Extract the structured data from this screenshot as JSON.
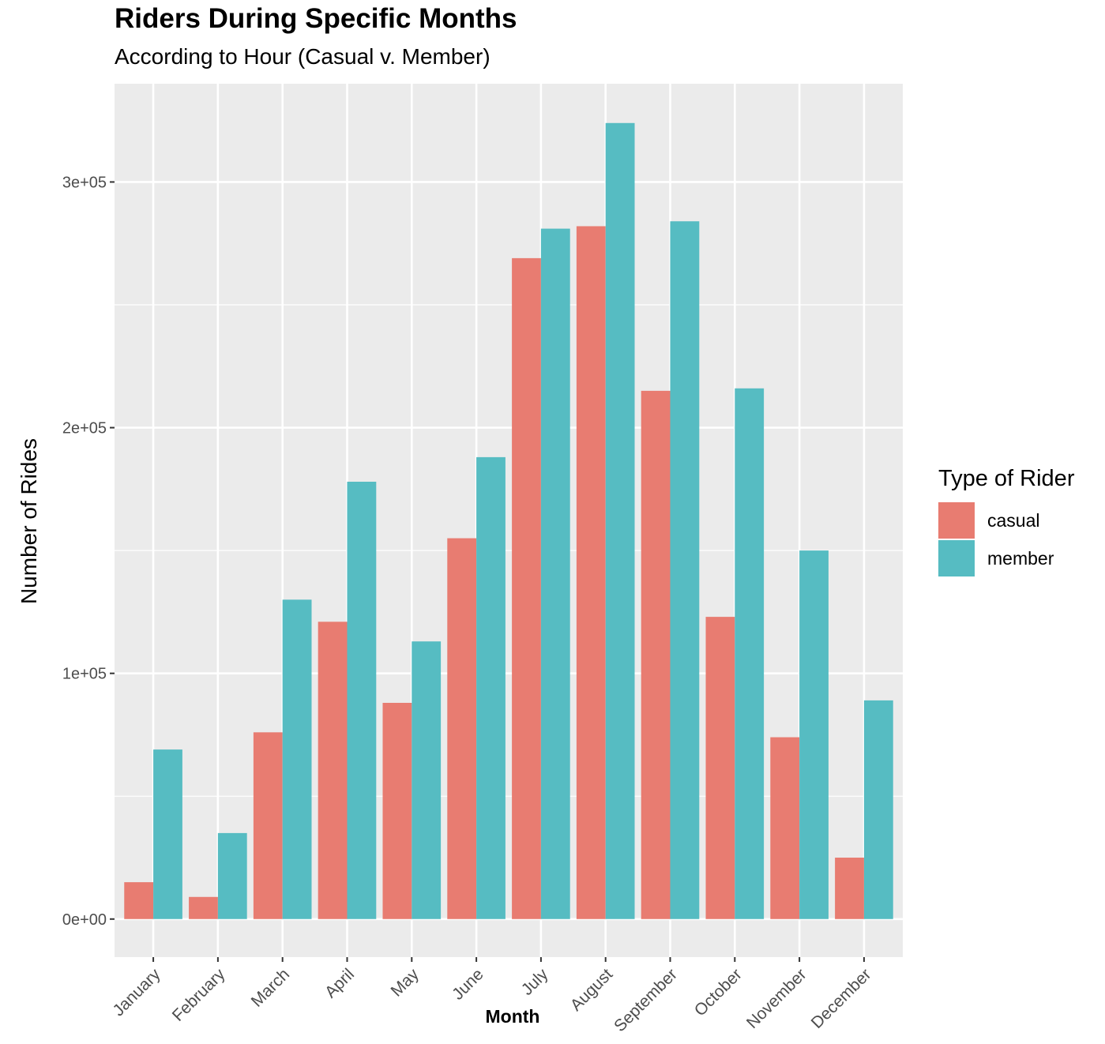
{
  "chart_data": {
    "type": "bar",
    "title": "Riders During Specific Months",
    "subtitle": "According to Hour (Casual v. Member)",
    "xlabel": "Month",
    "ylabel": "Number of Rides",
    "categories": [
      "January",
      "February",
      "March",
      "April",
      "May",
      "June",
      "July",
      "August",
      "September",
      "October",
      "November",
      "December"
    ],
    "series": [
      {
        "name": "casual",
        "color": "#E87C71",
        "values": [
          15000,
          9000,
          76000,
          121000,
          88000,
          155000,
          269000,
          282000,
          215000,
          123000,
          74000,
          25000
        ]
      },
      {
        "name": "member",
        "color": "#56BCC2",
        "values": [
          69000,
          35000,
          130000,
          178000,
          113000,
          188000,
          281000,
          324000,
          284000,
          216000,
          150000,
          89000
        ]
      }
    ],
    "ylim": [
      -15500,
      340000
    ],
    "y_ticks": [
      0,
      100000,
      200000,
      300000
    ],
    "y_tick_labels": [
      "0e+00",
      "1e+05",
      "2e+05",
      "3e+05"
    ],
    "grid": true,
    "legend_title": "Type of Rider",
    "legend_position": "right",
    "panel_background": "#EBEBEB"
  }
}
